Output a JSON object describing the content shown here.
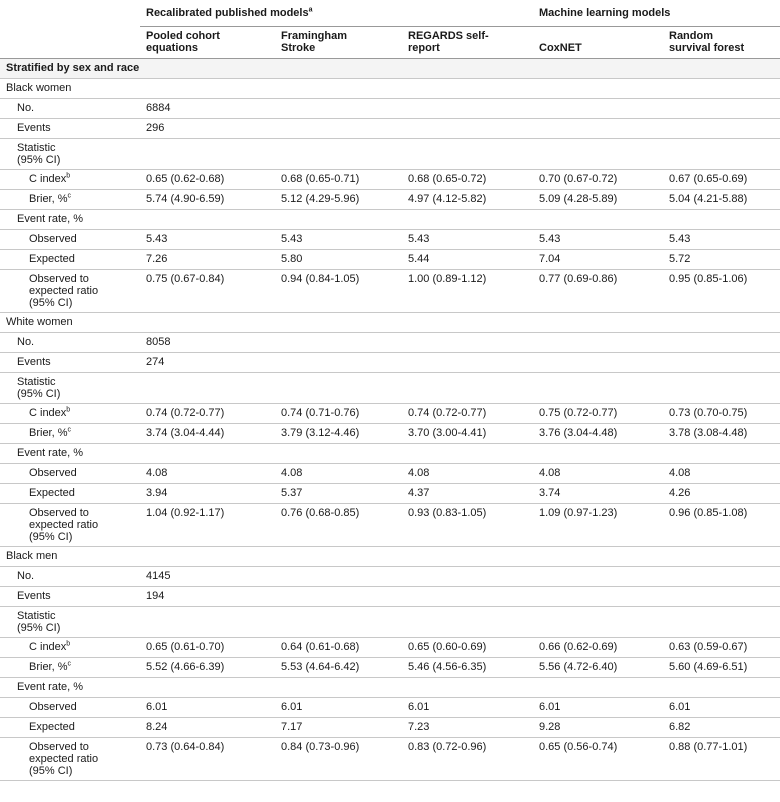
{
  "header": {
    "groups": [
      {
        "text": "Recalibrated published models",
        "sup": "a"
      },
      {
        "text": "Machine learning models"
      }
    ],
    "columns": [
      "Pooled cohort equations",
      "Framingham Stroke",
      "REGARDS self-report",
      "CoxNET",
      "Random survival forest"
    ]
  },
  "section": "Stratified by sex and race",
  "groups": [
    {
      "name": "Black women",
      "no": {
        "label": "No.",
        "value": "6884"
      },
      "events": {
        "label": "Events",
        "value": "296"
      },
      "statistic": {
        "label": "Statistic (95% CI)",
        "rows": [
          {
            "label": "C index",
            "sup": "b",
            "values": [
              "0.65 (0.62-0.68)",
              "0.68 (0.65-0.71)",
              "0.68 (0.65-0.72)",
              "0.70 (0.67-0.72)",
              "0.67 (0.65-0.69)"
            ]
          },
          {
            "label": "Brier, %",
            "sup": "c",
            "values": [
              "5.74 (4.90-6.59)",
              "5.12 (4.29-5.96)",
              "4.97 (4.12-5.82)",
              "5.09 (4.28-5.89)",
              "5.04 (4.21-5.88)"
            ]
          }
        ]
      },
      "event_rate": {
        "label": "Event rate, %",
        "rows": [
          {
            "label": "Observed",
            "values": [
              "5.43",
              "5.43",
              "5.43",
              "5.43",
              "5.43"
            ]
          },
          {
            "label": "Expected",
            "values": [
              "7.26",
              "5.80",
              "5.44",
              "7.04",
              "5.72"
            ]
          },
          {
            "label": "Observed to expected ratio (95% CI)",
            "values": [
              "0.75 (0.67-0.84)",
              "0.94 (0.84-1.05)",
              "1.00 (0.89-1.12)",
              "0.77 (0.69-0.86)",
              "0.95 (0.85-1.06)"
            ]
          }
        ]
      }
    },
    {
      "name": "White women",
      "no": {
        "label": "No.",
        "value": "8058"
      },
      "events": {
        "label": "Events",
        "value": "274"
      },
      "statistic": {
        "label": "Statistic (95% CI)",
        "rows": [
          {
            "label": "C index",
            "sup": "b",
            "values": [
              "0.74 (0.72-0.77)",
              "0.74 (0.71-0.76)",
              "0.74 (0.72-0.77)",
              "0.75 (0.72-0.77)",
              "0.73 (0.70-0.75)"
            ]
          },
          {
            "label": "Brier, %",
            "sup": "c",
            "values": [
              "3.74 (3.04-4.44)",
              "3.79 (3.12-4.46)",
              "3.70 (3.00-4.41)",
              "3.76 (3.04-4.48)",
              "3.78 (3.08-4.48)"
            ]
          }
        ]
      },
      "event_rate": {
        "label": "Event rate, %",
        "rows": [
          {
            "label": "Observed",
            "values": [
              "4.08",
              "4.08",
              "4.08",
              "4.08",
              "4.08"
            ]
          },
          {
            "label": "Expected",
            "values": [
              "3.94",
              "5.37",
              "4.37",
              "3.74",
              "4.26"
            ]
          },
          {
            "label": "Observed to expected ratio (95% CI)",
            "values": [
              "1.04 (0.92-1.17)",
              "0.76 (0.68-0.85)",
              "0.93 (0.83-1.05)",
              "1.09 (0.97-1.23)",
              "0.96 (0.85-1.08)"
            ]
          }
        ]
      }
    },
    {
      "name": "Black men",
      "no": {
        "label": "No.",
        "value": "4145"
      },
      "events": {
        "label": "Events",
        "value": "194"
      },
      "statistic": {
        "label": "Statistic (95% CI)",
        "rows": [
          {
            "label": "C index",
            "sup": "b",
            "values": [
              "0.65 (0.61-0.70)",
              "0.64 (0.61-0.68)",
              "0.65 (0.60-0.69)",
              "0.66 (0.62-0.69)",
              "0.63 (0.59-0.67)"
            ]
          },
          {
            "label": "Brier, %",
            "sup": "c",
            "values": [
              "5.52 (4.66-6.39)",
              "5.53 (4.64-6.42)",
              "5.46 (4.56-6.35)",
              "5.56 (4.72-6.40)",
              "5.60 (4.69-6.51)"
            ]
          }
        ]
      },
      "event_rate": {
        "label": "Event rate, %",
        "rows": [
          {
            "label": "Observed",
            "values": [
              "6.01",
              "6.01",
              "6.01",
              "6.01",
              "6.01"
            ]
          },
          {
            "label": "Expected",
            "values": [
              "8.24",
              "7.17",
              "7.23",
              "9.28",
              "6.82"
            ]
          },
          {
            "label": "Observed to expected ratio (95% CI)",
            "values": [
              "0.73 (0.64-0.84)",
              "0.84 (0.73-0.96)",
              "0.83 (0.72-0.96)",
              "0.65 (0.56-0.74)",
              "0.88 (0.77-1.01)"
            ]
          }
        ]
      }
    }
  ]
}
